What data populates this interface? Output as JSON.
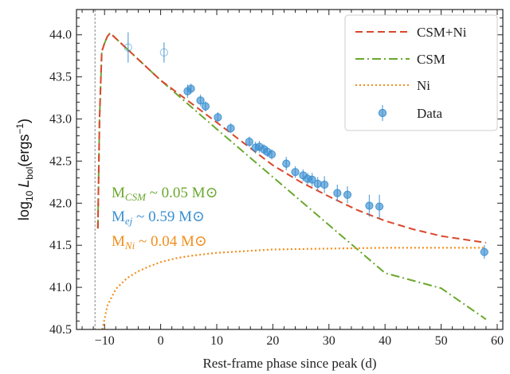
{
  "colors": {
    "csm_ni": "#d9472b",
    "csm": "#6aa82e",
    "ni": "#f28e1c",
    "data": "#3a8fd0",
    "axis": "#222222",
    "explosion_line": "#888888"
  },
  "chart_data": {
    "type": "scatter",
    "title": "",
    "xlabel": "Rest-frame phase since peak (d)",
    "ylabel": {
      "prefix": "log",
      "sub": "10",
      "var": "L",
      "var_sub": "bol",
      "unit_open": "(ergs",
      "unit_sup": "−1",
      "unit_close": ")"
    },
    "xlim": [
      -15,
      61
    ],
    "ylim": [
      40.5,
      44.3
    ],
    "x_ticks": [
      -10,
      0,
      10,
      20,
      30,
      40,
      50,
      60
    ],
    "x_tick_labels": [
      "−10",
      "0",
      "10",
      "20",
      "30",
      "40",
      "50",
      "60"
    ],
    "y_ticks": [
      40.5,
      41.0,
      41.5,
      42.0,
      42.5,
      43.0,
      43.5,
      44.0
    ],
    "y_tick_labels": [
      "40.5",
      "41.0",
      "41.5",
      "42.0",
      "42.5",
      "43.0",
      "43.5",
      "44.0"
    ],
    "explosion_epoch": -11.7,
    "legend_position": "top-right",
    "legend": [
      {
        "label": "CSM+Ni",
        "style": "dashed",
        "color_key": "csm_ni"
      },
      {
        "label": "CSM",
        "style": "dashdot",
        "color_key": "csm"
      },
      {
        "label": "Ni",
        "style": "dotted",
        "color_key": "ni"
      },
      {
        "label": "Data",
        "style": "marker",
        "color_key": "data"
      }
    ],
    "series": [
      {
        "name": "CSM+Ni",
        "style": "dashed",
        "x": [
          -11.2,
          -10.9,
          -10.5,
          -10.0,
          -9.5,
          -9.0,
          0,
          10,
          20,
          25,
          30,
          35,
          40,
          45,
          50,
          55,
          58
        ],
        "y": [
          41.7,
          43.0,
          43.8,
          43.9,
          43.98,
          44.02,
          43.46,
          42.96,
          42.45,
          42.25,
          42.08,
          41.92,
          41.79,
          41.69,
          41.61,
          41.56,
          41.53
        ]
      },
      {
        "name": "CSM",
        "style": "dashdot",
        "x": [
          -11.2,
          -10.9,
          -10.5,
          -10.0,
          -9.5,
          -9.0,
          0,
          10,
          20,
          30,
          40,
          50,
          58
        ],
        "y": [
          41.7,
          43.0,
          43.8,
          43.9,
          43.98,
          44.02,
          43.46,
          42.88,
          42.31,
          41.74,
          41.17,
          40.99,
          40.62
        ]
      },
      {
        "name": "Ni",
        "style": "dotted",
        "x": [
          -10.4,
          -9.5,
          -8.0,
          -6.0,
          -4.0,
          -2.0,
          0,
          3,
          6,
          10,
          15,
          20,
          30,
          40,
          50,
          58
        ],
        "y": [
          40.5,
          40.78,
          40.98,
          41.11,
          41.19,
          41.25,
          41.3,
          41.35,
          41.38,
          41.41,
          41.43,
          41.45,
          41.46,
          41.47,
          41.47,
          41.47
        ]
      }
    ],
    "points": {
      "x": [
        -5.8,
        0.6,
        4.8,
        5.4,
        7.1,
        8.0,
        10.2,
        12.5,
        15.8,
        16.9,
        17.6,
        18.4,
        19.0,
        19.8,
        22.4,
        24.0,
        25.4,
        26.2,
        27.0,
        28.0,
        29.2,
        31.5,
        33.3,
        37.2,
        39.0,
        57.7
      ],
      "y": [
        43.85,
        43.79,
        43.33,
        43.36,
        43.22,
        43.15,
        43.02,
        42.89,
        42.73,
        42.66,
        42.67,
        42.64,
        42.61,
        42.58,
        42.47,
        42.37,
        42.33,
        42.29,
        42.28,
        42.23,
        42.22,
        42.12,
        42.1,
        41.97,
        41.96,
        41.42
      ],
      "yerr": [
        0.18,
        0.12,
        0.08,
        0.06,
        0.07,
        0.06,
        0.06,
        0.06,
        0.06,
        0.07,
        0.07,
        0.06,
        0.06,
        0.06,
        0.08,
        0.07,
        0.07,
        0.07,
        0.08,
        0.08,
        0.1,
        0.1,
        0.1,
        0.13,
        0.14,
        0.08
      ],
      "open": [
        true,
        true,
        false,
        false,
        false,
        false,
        false,
        false,
        false,
        false,
        false,
        false,
        false,
        false,
        false,
        false,
        false,
        false,
        false,
        false,
        false,
        false,
        false,
        false,
        false,
        false
      ]
    },
    "annotations": [
      {
        "pre": "M",
        "sub": "CSM",
        "post": " ~ 0.05 M",
        "sym": "⊙",
        "color_key": "csm"
      },
      {
        "pre": "M",
        "sub": "ej",
        "post": " ~ 0.59 M",
        "sym": "⊙",
        "color_key": "data"
      },
      {
        "pre": "M",
        "sub": "Ni",
        "post": " ~ 0.04 M",
        "sym": "⊙",
        "color_key": "ni"
      }
    ]
  }
}
